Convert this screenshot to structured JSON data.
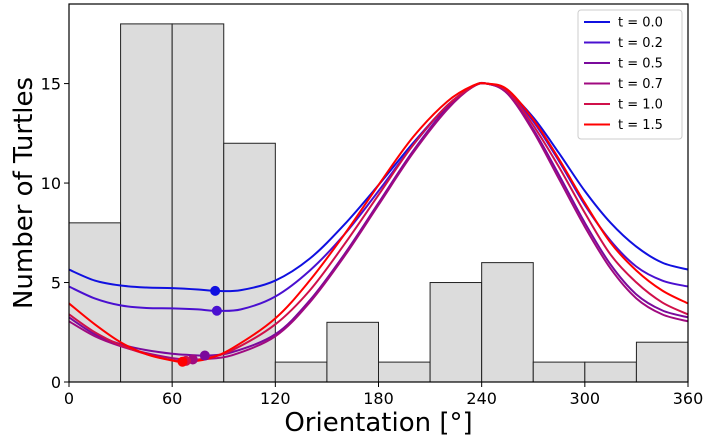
{
  "chart_data": {
    "type": "bar",
    "xlabel": "Orientation [°]",
    "ylabel": "Number of Turtles",
    "xlim": [
      0,
      360
    ],
    "ylim": [
      0,
      19
    ],
    "xticks": [
      "0",
      "60",
      "120",
      "180",
      "240",
      "300",
      "360"
    ],
    "yticks": [
      "0",
      "5",
      "10",
      "15"
    ],
    "grid": false,
    "legend_position": "top-right",
    "histogram": {
      "bin_width": 30,
      "bin_starts": [
        0,
        30,
        60,
        90,
        120,
        150,
        180,
        210,
        240,
        270,
        300,
        330
      ],
      "counts": [
        8,
        18,
        18,
        12,
        1,
        3,
        1,
        5,
        6,
        1,
        1,
        2
      ],
      "fill": "#dcdcdc",
      "edge": "#222222"
    },
    "series": [
      {
        "name": "t = 0.0",
        "color": "#1010e0",
        "points": [
          [
            0,
            5.65
          ],
          [
            15,
            5.1
          ],
          [
            30,
            4.85
          ],
          [
            45,
            4.75
          ],
          [
            60,
            4.72
          ],
          [
            75,
            4.65
          ],
          [
            85,
            4.58
          ],
          [
            100,
            4.62
          ],
          [
            120,
            5.1
          ],
          [
            140,
            6.2
          ],
          [
            160,
            7.9
          ],
          [
            180,
            9.9
          ],
          [
            200,
            12.0
          ],
          [
            220,
            13.9
          ],
          [
            235,
            14.85
          ],
          [
            243,
            15.0
          ],
          [
            255,
            14.6
          ],
          [
            270,
            13.3
          ],
          [
            285,
            11.5
          ],
          [
            300,
            9.6
          ],
          [
            315,
            8.0
          ],
          [
            330,
            6.8
          ],
          [
            345,
            6.0
          ],
          [
            360,
            5.65
          ]
        ],
        "marker": [
          85,
          4.58
        ]
      },
      {
        "name": "t = 0.2",
        "color": "#4a10d0",
        "points": [
          [
            0,
            4.8
          ],
          [
            15,
            4.2
          ],
          [
            30,
            3.85
          ],
          [
            45,
            3.72
          ],
          [
            60,
            3.7
          ],
          [
            75,
            3.65
          ],
          [
            85,
            3.58
          ],
          [
            100,
            3.65
          ],
          [
            120,
            4.3
          ],
          [
            140,
            5.6
          ],
          [
            160,
            7.4
          ],
          [
            180,
            9.6
          ],
          [
            200,
            11.9
          ],
          [
            220,
            13.9
          ],
          [
            235,
            14.85
          ],
          [
            243,
            15.0
          ],
          [
            255,
            14.6
          ],
          [
            270,
            13.1
          ],
          [
            285,
            11.1
          ],
          [
            300,
            8.9
          ],
          [
            315,
            7.1
          ],
          [
            330,
            5.8
          ],
          [
            345,
            5.1
          ],
          [
            360,
            4.8
          ]
        ],
        "marker": [
          86,
          3.58
        ]
      },
      {
        "name": "t = 0.5",
        "color": "#7a0a9c",
        "points": [
          [
            0,
            3.25
          ],
          [
            15,
            2.4
          ],
          [
            30,
            1.9
          ],
          [
            45,
            1.6
          ],
          [
            60,
            1.42
          ],
          [
            70,
            1.36
          ],
          [
            80,
            1.33
          ],
          [
            95,
            1.5
          ],
          [
            120,
            2.4
          ],
          [
            140,
            4.1
          ],
          [
            160,
            6.4
          ],
          [
            180,
            9.0
          ],
          [
            200,
            11.6
          ],
          [
            220,
            13.8
          ],
          [
            235,
            14.85
          ],
          [
            243,
            15.0
          ],
          [
            255,
            14.5
          ],
          [
            270,
            12.7
          ],
          [
            285,
            10.4
          ],
          [
            300,
            8.0
          ],
          [
            315,
            5.9
          ],
          [
            330,
            4.4
          ],
          [
            345,
            3.6
          ],
          [
            360,
            3.25
          ]
        ],
        "marker": [
          79,
          1.33
        ]
      },
      {
        "name": "t = 0.7",
        "color": "#a00a80",
        "points": [
          [
            0,
            3.05
          ],
          [
            15,
            2.3
          ],
          [
            30,
            1.8
          ],
          [
            45,
            1.45
          ],
          [
            60,
            1.2
          ],
          [
            68,
            1.13
          ],
          [
            78,
            1.15
          ],
          [
            95,
            1.35
          ],
          [
            120,
            2.3
          ],
          [
            140,
            4.0
          ],
          [
            160,
            6.3
          ],
          [
            180,
            8.9
          ],
          [
            200,
            11.5
          ],
          [
            220,
            13.7
          ],
          [
            235,
            14.85
          ],
          [
            243,
            15.0
          ],
          [
            255,
            14.5
          ],
          [
            270,
            12.6
          ],
          [
            285,
            10.2
          ],
          [
            300,
            7.8
          ],
          [
            315,
            5.7
          ],
          [
            330,
            4.2
          ],
          [
            345,
            3.4
          ],
          [
            360,
            3.05
          ]
        ],
        "marker": [
          72,
          1.13
        ]
      },
      {
        "name": "t = 1.0",
        "color": "#d0104a",
        "points": [
          [
            0,
            3.4
          ],
          [
            15,
            2.5
          ],
          [
            30,
            1.85
          ],
          [
            45,
            1.4
          ],
          [
            60,
            1.1
          ],
          [
            68,
            1.06
          ],
          [
            80,
            1.2
          ],
          [
            95,
            1.6
          ],
          [
            120,
            2.9
          ],
          [
            140,
            4.6
          ],
          [
            160,
            6.9
          ],
          [
            180,
            9.4
          ],
          [
            200,
            11.9
          ],
          [
            220,
            13.9
          ],
          [
            235,
            14.85
          ],
          [
            243,
            15.0
          ],
          [
            255,
            14.6
          ],
          [
            270,
            12.9
          ],
          [
            285,
            10.8
          ],
          [
            300,
            8.5
          ],
          [
            315,
            6.4
          ],
          [
            330,
            5.0
          ],
          [
            345,
            4.0
          ],
          [
            360,
            3.4
          ]
        ],
        "marker": [
          68,
          1.06
        ]
      },
      {
        "name": "t = 1.5",
        "color": "#ff0000",
        "points": [
          [
            0,
            3.95
          ],
          [
            15,
            2.9
          ],
          [
            30,
            2.0
          ],
          [
            45,
            1.4
          ],
          [
            60,
            1.08
          ],
          [
            67,
            1.02
          ],
          [
            80,
            1.15
          ],
          [
            95,
            1.7
          ],
          [
            120,
            3.2
          ],
          [
            140,
            5.1
          ],
          [
            160,
            7.4
          ],
          [
            180,
            9.9
          ],
          [
            200,
            12.3
          ],
          [
            220,
            14.1
          ],
          [
            235,
            14.9
          ],
          [
            243,
            15.0
          ],
          [
            255,
            14.7
          ],
          [
            270,
            13.2
          ],
          [
            285,
            11.2
          ],
          [
            300,
            9.0
          ],
          [
            315,
            7.0
          ],
          [
            330,
            5.6
          ],
          [
            345,
            4.6
          ],
          [
            360,
            3.95
          ]
        ],
        "marker": [
          66,
          1.02
        ]
      }
    ]
  }
}
